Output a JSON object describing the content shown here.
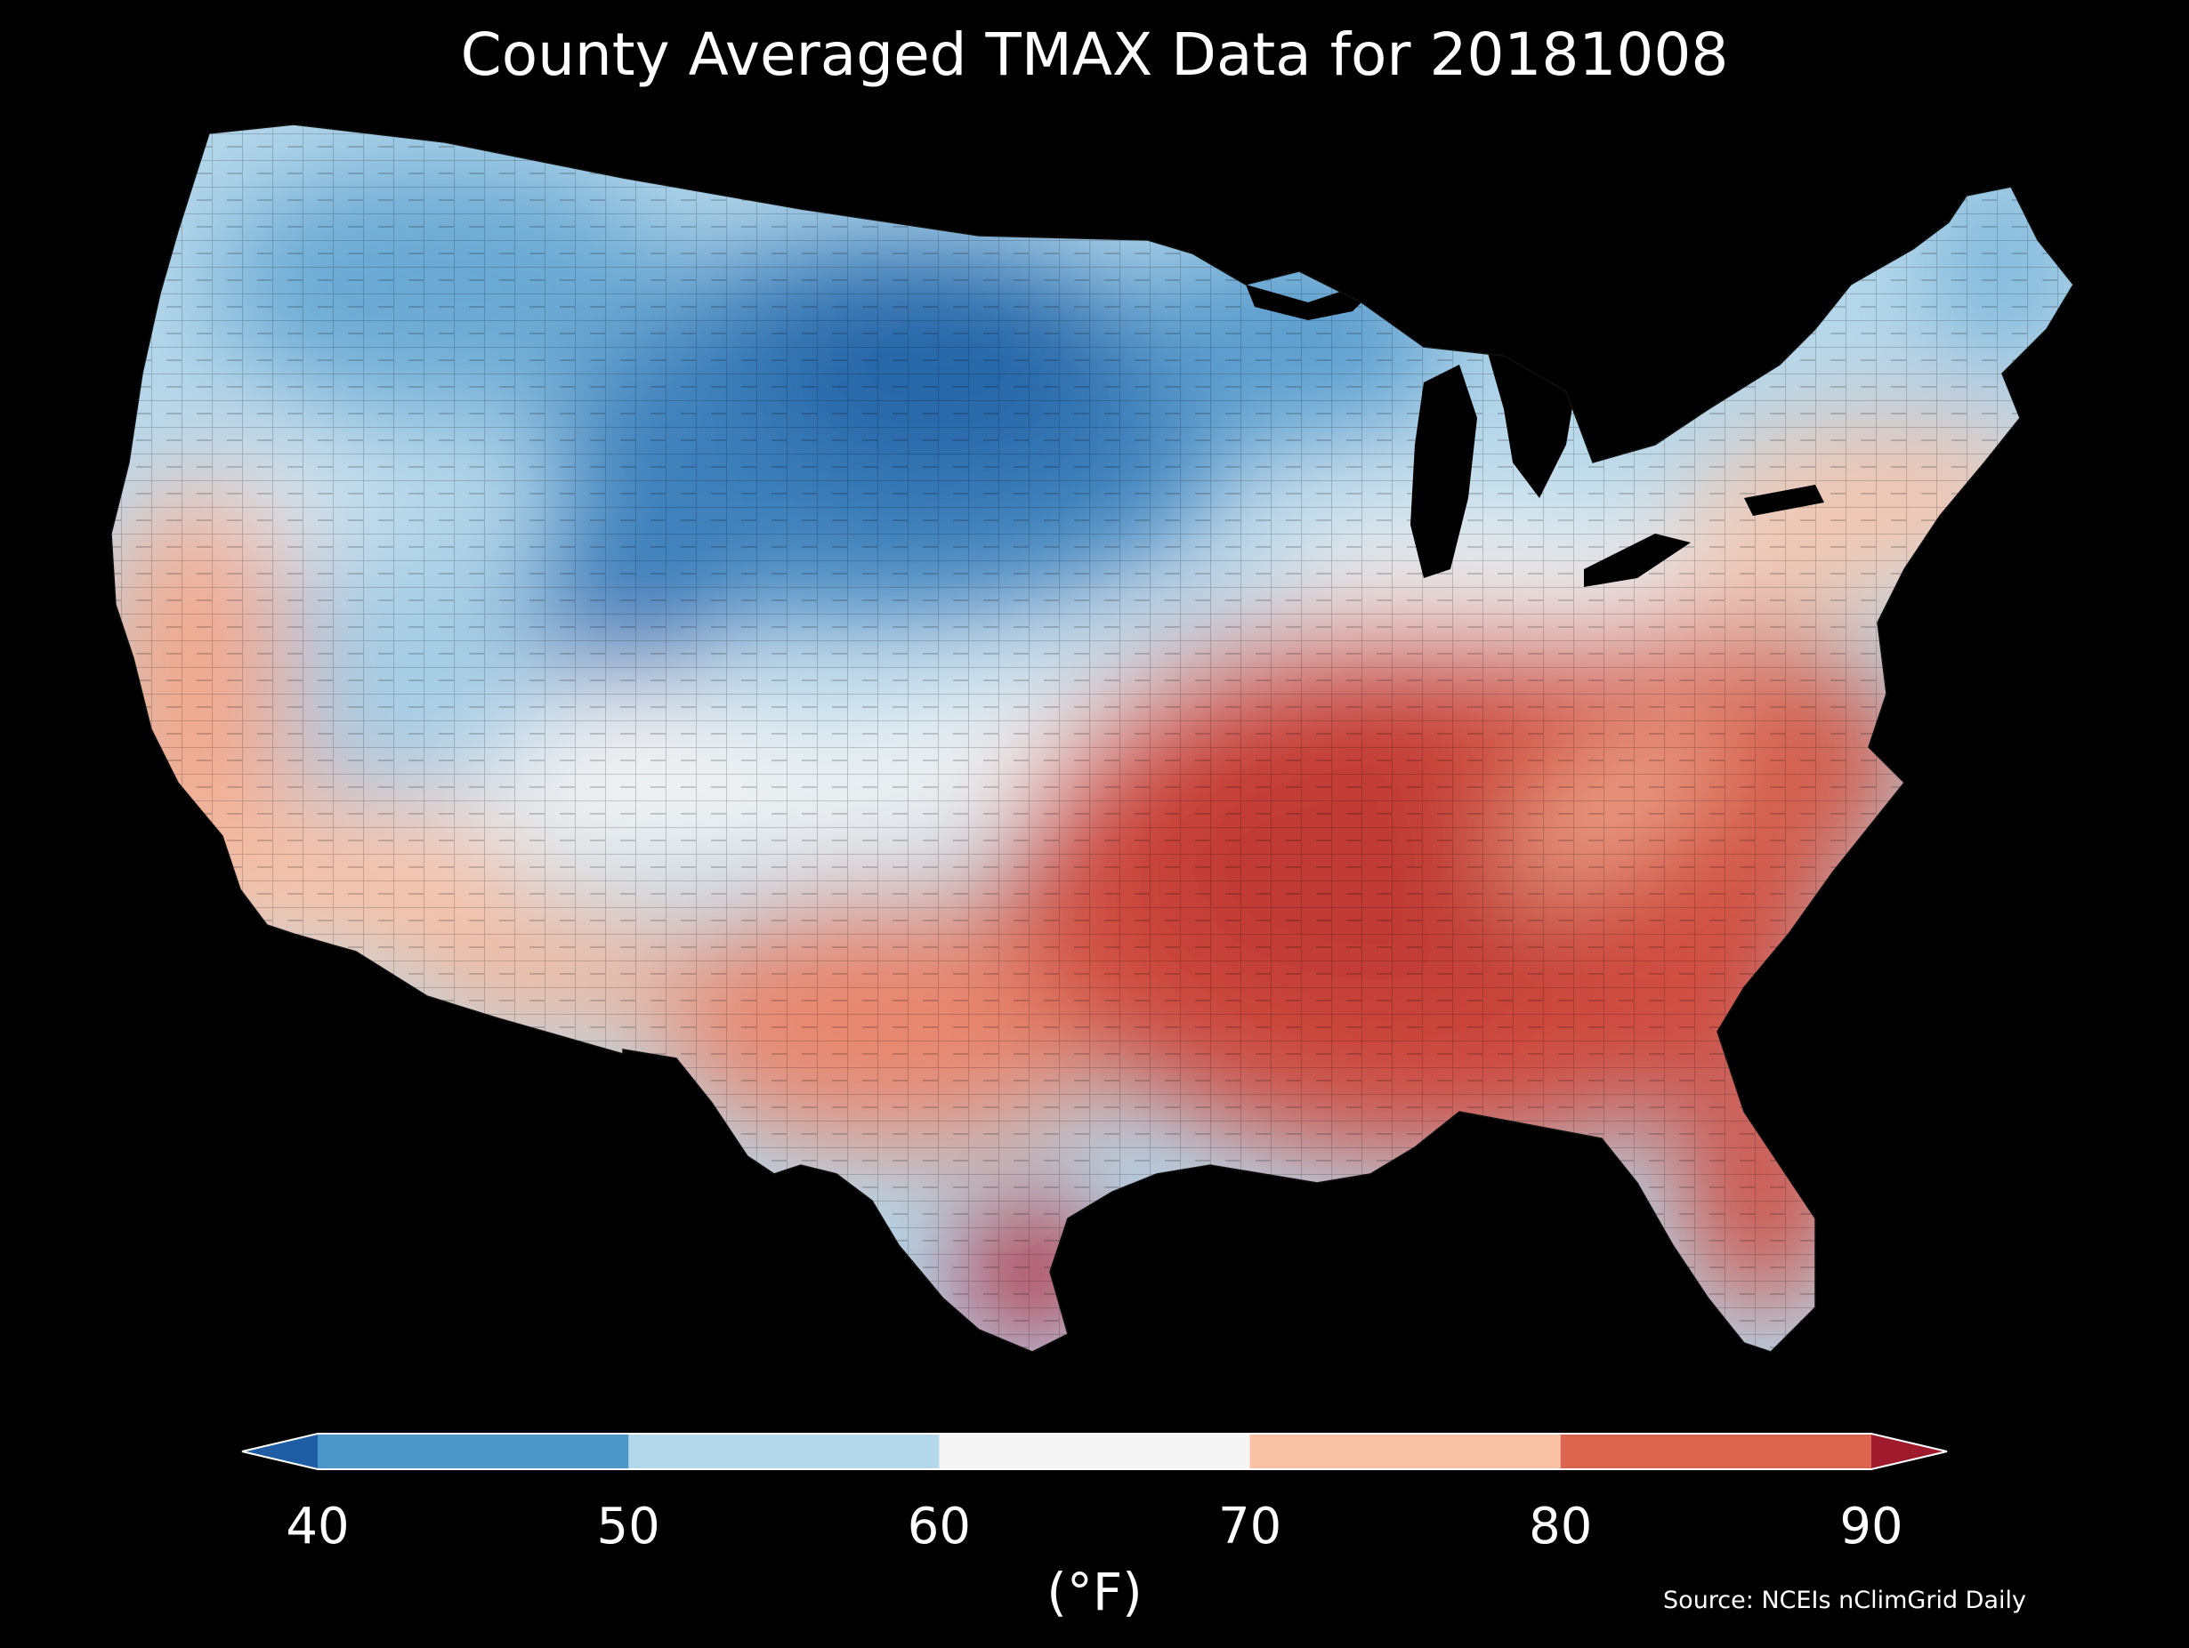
{
  "title": "County Averaged TMAX Data for 20181008",
  "colorbar": {
    "ticks": [
      "40",
      "50",
      "60",
      "70",
      "80",
      "90"
    ],
    "unit_label": "(°F)",
    "bins": [
      {
        "range": "<40",
        "color": "#1f5ea4"
      },
      {
        "range": "40-50",
        "color": "#4a97c8"
      },
      {
        "range": "50-60",
        "color": "#b5d7ea"
      },
      {
        "range": "60-70",
        "color": "#f5f5f5"
      },
      {
        "range": "70-80",
        "color": "#f8c1a6"
      },
      {
        "range": "80-90",
        "color": "#dc6550"
      },
      {
        "range": ">90",
        "color": "#a01a2e"
      }
    ]
  },
  "source": "Source: NCEIs nClimGrid Daily",
  "map_legend": {
    "type": "choropleth",
    "variable": "TMAX",
    "date": "20181008",
    "pattern": "cool (40-60°F) across the north-central and northwest interior, warm (80-90°F) across the southeast and Gulf coast"
  }
}
